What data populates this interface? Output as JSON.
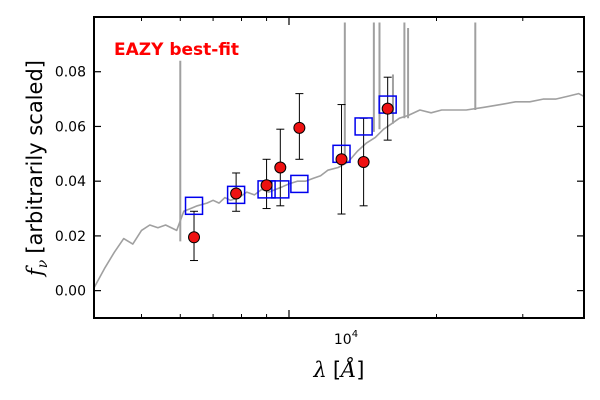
{
  "chart_data": {
    "type": "scatter",
    "annotation": "EAZY best-fit",
    "xlabel_var": "λ",
    "xlabel_unit": "Å",
    "ylabel_var": "f",
    "ylabel_sub": "ν",
    "ylabel_text": "[arbitrarily scaled]",
    "xscale": "log",
    "xlim": [
      4000,
      40000
    ],
    "ylim": [
      -0.01,
      0.1
    ],
    "yticks": [
      {
        "value": 0.0,
        "label": "0.00"
      },
      {
        "value": 0.02,
        "label": "0.02"
      },
      {
        "value": 0.04,
        "label": "0.04"
      },
      {
        "value": 0.06,
        "label": "0.06"
      },
      {
        "value": 0.08,
        "label": "0.08"
      }
    ],
    "xtick_major_label": {
      "base": "10",
      "exp": "4",
      "value": 10000
    },
    "colors": {
      "template": "#a0a0a0",
      "model": "#0000ee",
      "observed": "#ee1111",
      "annotation": "#ff0000"
    },
    "series": [
      {
        "kind": "template",
        "points": [
          [
            4000,
            0.001
          ],
          [
            4200,
            0.008
          ],
          [
            4400,
            0.014
          ],
          [
            4600,
            0.019
          ],
          [
            4800,
            0.017
          ],
          [
            5000,
            0.022
          ],
          [
            5200,
            0.024
          ],
          [
            5400,
            0.023
          ],
          [
            5600,
            0.024
          ],
          [
            5900,
            0.022
          ],
          [
            6100,
            0.029
          ],
          [
            6300,
            0.03
          ],
          [
            6500,
            0.031
          ],
          [
            6800,
            0.032
          ],
          [
            7000,
            0.033
          ],
          [
            7200,
            0.032
          ],
          [
            7400,
            0.034
          ],
          [
            7600,
            0.033
          ],
          [
            7900,
            0.034
          ],
          [
            8200,
            0.036
          ],
          [
            8500,
            0.035
          ],
          [
            8800,
            0.037
          ],
          [
            9100,
            0.036
          ],
          [
            9400,
            0.037
          ],
          [
            9700,
            0.038
          ],
          [
            10000,
            0.039
          ],
          [
            10400,
            0.04
          ],
          [
            10800,
            0.04
          ],
          [
            11200,
            0.041
          ],
          [
            11600,
            0.042
          ],
          [
            12000,
            0.044
          ],
          [
            12600,
            0.045
          ],
          [
            13200,
            0.047
          ],
          [
            13800,
            0.051
          ],
          [
            14400,
            0.054
          ],
          [
            15000,
            0.056
          ],
          [
            15600,
            0.059
          ],
          [
            16200,
            0.061
          ],
          [
            16800,
            0.063
          ],
          [
            17500,
            0.064
          ],
          [
            18500,
            0.066
          ],
          [
            19500,
            0.065
          ],
          [
            20500,
            0.066
          ],
          [
            21500,
            0.066
          ],
          [
            23000,
            0.066
          ],
          [
            25000,
            0.067
          ],
          [
            27000,
            0.068
          ],
          [
            29000,
            0.069
          ],
          [
            31000,
            0.069
          ],
          [
            33000,
            0.07
          ],
          [
            35000,
            0.07
          ],
          [
            37000,
            0.071
          ],
          [
            39000,
            0.072
          ],
          [
            40000,
            0.071
          ]
        ],
        "spikes": [
          {
            "x": 6000,
            "top": 0.084,
            "base": 0.018
          },
          {
            "x": 13000,
            "top": 0.098,
            "base": 0.047
          },
          {
            "x": 14900,
            "top": 0.098,
            "base": 0.058
          },
          {
            "x": 15300,
            "top": 0.098,
            "base": 0.059
          },
          {
            "x": 16300,
            "top": 0.079,
            "base": 0.061
          },
          {
            "x": 17200,
            "top": 0.098,
            "base": 0.063
          },
          {
            "x": 17500,
            "top": 0.096,
            "base": 0.063
          },
          {
            "x": 24000,
            "top": 0.098,
            "base": 0.066
          }
        ]
      },
      {
        "kind": "model",
        "points": [
          [
            6400,
            0.031
          ],
          [
            7800,
            0.035
          ],
          [
            9000,
            0.037
          ],
          [
            9600,
            0.037
          ],
          [
            10500,
            0.039
          ],
          [
            12800,
            0.05
          ],
          [
            14200,
            0.06
          ],
          [
            15900,
            0.068
          ]
        ]
      },
      {
        "kind": "observed",
        "points": [
          {
            "x": 6400,
            "y": 0.0195,
            "lo": 0.011,
            "hi": 0.029
          },
          {
            "x": 7800,
            "y": 0.0355,
            "lo": 0.029,
            "hi": 0.043
          },
          {
            "x": 9000,
            "y": 0.0385,
            "lo": 0.03,
            "hi": 0.048
          },
          {
            "x": 9600,
            "y": 0.045,
            "lo": 0.031,
            "hi": 0.059
          },
          {
            "x": 10500,
            "y": 0.0595,
            "lo": 0.048,
            "hi": 0.072
          },
          {
            "x": 12800,
            "y": 0.048,
            "lo": 0.028,
            "hi": 0.068
          },
          {
            "x": 14200,
            "y": 0.047,
            "lo": 0.031,
            "hi": 0.063
          },
          {
            "x": 15900,
            "y": 0.0665,
            "lo": 0.055,
            "hi": 0.078
          }
        ]
      }
    ]
  }
}
